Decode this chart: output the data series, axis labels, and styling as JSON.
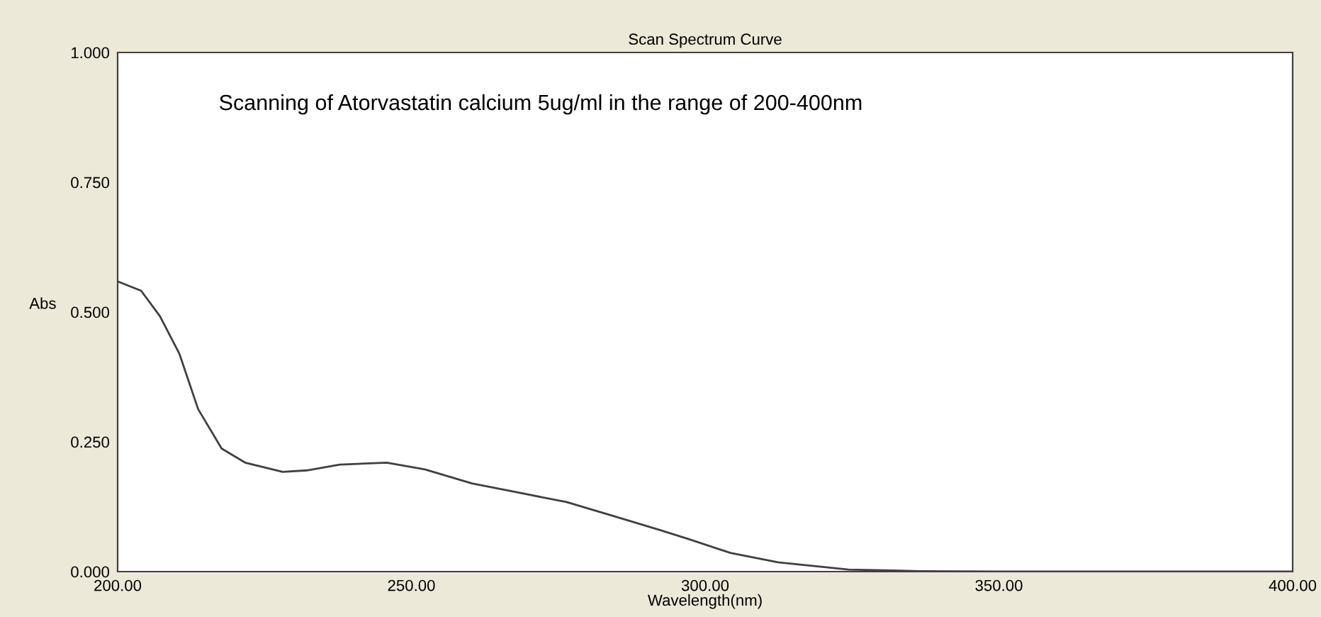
{
  "chart_data": {
    "type": "line",
    "title": "Scan Spectrum Curve",
    "xlabel": "Wavelength(nm)",
    "ylabel": "Abs",
    "annotations": [
      "Scanning of Atorvastatin calcium 5ug/ml in the range of 200-400nm"
    ],
    "series": [
      {
        "color": "#404040",
        "x": [
          200,
          204.0,
          207.2,
          210.5,
          213.7,
          217.7,
          221.7,
          228.1,
          232.2,
          237.8,
          245.8,
          252.3,
          260.3,
          268.3,
          276.4,
          284.4,
          292.3,
          297.1,
          304.3,
          312.4,
          324.4,
          336.5,
          350,
          375,
          400
        ],
        "values": [
          0.559,
          0.541,
          0.492,
          0.42,
          0.313,
          0.237,
          0.21,
          0.192,
          0.195,
          0.206,
          0.21,
          0.197,
          0.17,
          0.152,
          0.134,
          0.107,
          0.08,
          0.063,
          0.036,
          0.018,
          0.004,
          0.001,
          0.0,
          0.0,
          0.0
        ]
      }
    ],
    "xlim": [
      200,
      400
    ],
    "ylim": [
      0,
      1
    ],
    "xticks": [
      {
        "value": 200,
        "label": "200.00"
      },
      {
        "value": 250,
        "label": "250.00"
      },
      {
        "value": 300,
        "label": "300.00"
      },
      {
        "value": 350,
        "label": "350.00"
      },
      {
        "value": 400,
        "label": "400.00"
      }
    ],
    "yticks": [
      {
        "value": 0,
        "label": "0.000"
      },
      {
        "value": 0.25,
        "label": "0.250"
      },
      {
        "value": 0.5,
        "label": "0.500"
      },
      {
        "value": 0.75,
        "label": "0.750"
      },
      {
        "value": 1,
        "label": "1.000"
      }
    ],
    "grid": false,
    "legend": false,
    "marker": "none",
    "line_style": "solid"
  }
}
